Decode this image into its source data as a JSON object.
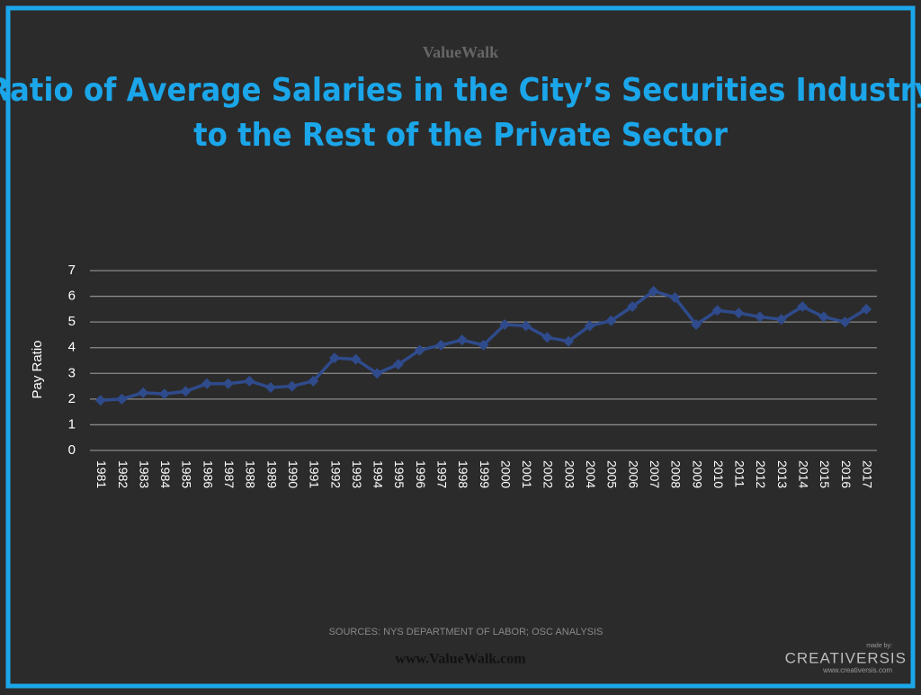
{
  "brand": "ValueWalk",
  "footer": {
    "source": "SOURCES: NYS DEPARTMENT OF LABOR; OSC ANALYSIS",
    "site": "www.ValueWalk.com",
    "maker_note": "made by:",
    "maker": "CREATIVERSIS",
    "maker_site": "www.creativersis.com"
  },
  "chart_data": {
    "type": "line",
    "title": [
      "Ratio of Average Salaries in the City’s Securities Industry",
      "to the Rest of the Private Sector"
    ],
    "y_label": "Pay Ratio",
    "categories": [
      "1981",
      "1982",
      "1983",
      "1984",
      "1985",
      "1986",
      "1987",
      "1988",
      "1989",
      "1990",
      "1991",
      "1992",
      "1993",
      "1994",
      "1995",
      "1996",
      "1997",
      "1998",
      "1999",
      "2000",
      "2001",
      "2002",
      "2003",
      "2004",
      "2005",
      "2006",
      "2007",
      "2008",
      "2009",
      "2010",
      "2011",
      "2012",
      "2013",
      "2014",
      "2015",
      "2016",
      "2017"
    ],
    "series": [
      {
        "name": "Pay Ratio",
        "color": "#2f4b8c",
        "values": [
          1.95,
          2.0,
          2.25,
          2.2,
          2.3,
          2.6,
          2.6,
          2.7,
          2.45,
          2.5,
          2.7,
          3.6,
          3.55,
          3.0,
          3.35,
          3.9,
          4.1,
          4.3,
          4.1,
          4.9,
          4.85,
          4.4,
          4.25,
          4.85,
          5.05,
          5.6,
          6.2,
          5.95,
          4.9,
          5.45,
          5.35,
          5.2,
          5.1,
          5.6,
          5.2,
          5.0,
          5.5
        ]
      }
    ],
    "ylim": [
      0,
      7
    ],
    "yticks": [
      0,
      1,
      2,
      3,
      4,
      5,
      6,
      7
    ],
    "grid": true
  }
}
